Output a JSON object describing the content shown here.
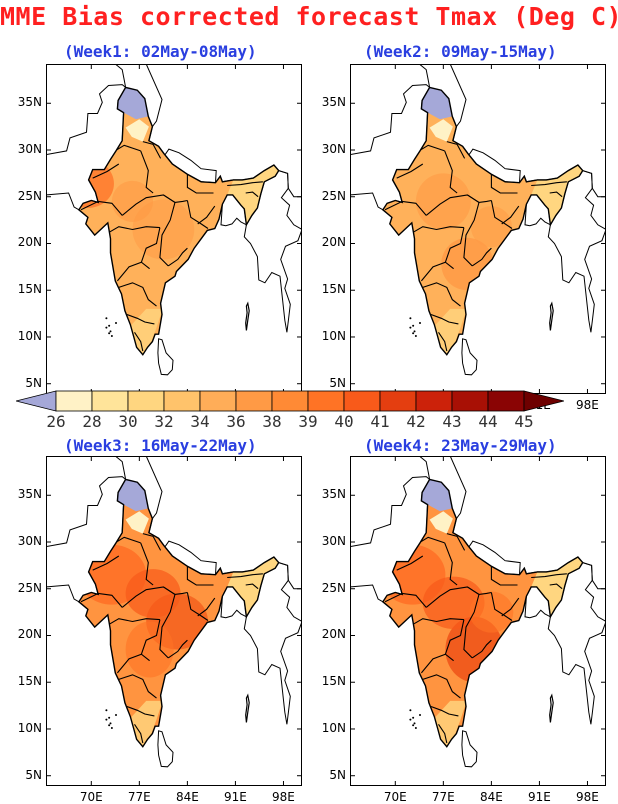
{
  "title": "MME Bias corrected forecast Tmax (Deg C)",
  "panels": [
    {
      "label": "(Week1: 02May-08May)"
    },
    {
      "label": "(Week2: 09May-15May)"
    },
    {
      "label": "(Week3: 16May-22May)"
    },
    {
      "label": "(Week4: 23May-29May)"
    }
  ],
  "axes": {
    "lon_ticks": [
      "70E",
      "77E",
      "84E",
      "91E",
      "98E"
    ],
    "lat_ticks": [
      "35N",
      "30N",
      "25N",
      "20N",
      "15N",
      "10N",
      "5N"
    ]
  },
  "colorbar": {
    "values": [
      "26",
      "28",
      "30",
      "32",
      "34",
      "36",
      "38",
      "39",
      "40",
      "41",
      "42",
      "43",
      "44",
      "45"
    ],
    "colors": [
      "#a5a8d8",
      "#fff2c6",
      "#ffe49a",
      "#ffd680",
      "#ffc36b",
      "#ffad58",
      "#ff9a45",
      "#ff8a35",
      "#ff7325",
      "#f85a1a",
      "#e43e10",
      "#cc220a",
      "#a81005",
      "#8a0404",
      "#6e0000"
    ]
  }
}
